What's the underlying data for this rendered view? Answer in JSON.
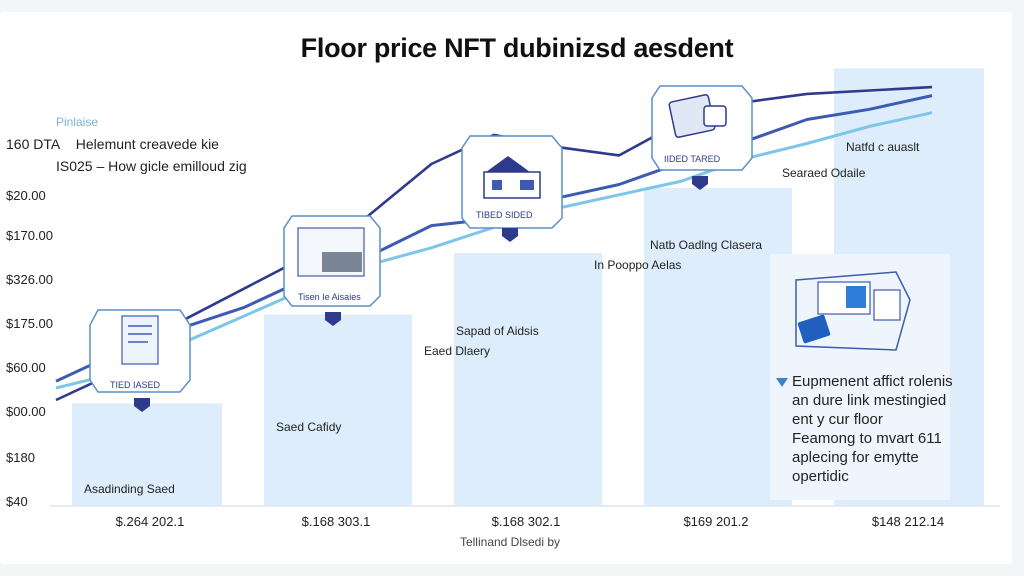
{
  "chart_data": {
    "type": "line",
    "title": "Floor price NFT dubinizsd aesdent",
    "xlabel": "Tellinand Dlsedi by",
    "ylabel": "",
    "y_ticks": [
      "$40",
      "$180",
      "$00.00",
      "$60.00",
      "$175.00",
      "$326.00",
      "$170.00",
      "$20.00",
      "160 DTA"
    ],
    "x_ticks": [
      "$.264 202.1",
      "$.168 303.1",
      "$.168 302.1",
      "$169 201.2",
      "$148 212.14"
    ],
    "legend": {
      "tag": "Pinlaise",
      "rows": [
        {
          "code": "160 DTA",
          "text": "Helemunt creavede kie"
        },
        {
          "code": "IS025",
          "text": "– How gicle emilloud zig"
        }
      ]
    },
    "series": [
      {
        "values": [
          62,
          79,
          108,
          127,
          146,
          170,
          200,
          217,
          210,
          205,
          225,
          236,
          241,
          243,
          245
        ]
      },
      {
        "values": [
          73,
          90,
          104,
          116,
          133,
          146,
          164,
          168,
          180,
          188,
          201,
          213,
          226,
          232,
          240
        ]
      },
      {
        "values": [
          69,
          78,
          95,
          111,
          127,
          141,
          151,
          163,
          174,
          182,
          190,
          203,
          212,
          222,
          230
        ]
      }
    ],
    "bars": [
      60,
      112,
      148,
      186,
      256
    ],
    "annotations": [
      "Asadinding Saed",
      "Saed Cafidy",
      "Sapad of Aidsis",
      "Eaed Dlaery",
      "In Pooppo Aelas",
      "Natb Oadlng Clasera",
      "Searaed Odaile",
      "Natfd c auaslt"
    ],
    "card_labels": [
      "TIED IASED",
      "Tisen Ie Aisaies",
      "TIBED SIDED",
      "IIDED TARED"
    ],
    "note": [
      "Eupmenent affict rolenis",
      "an dure link mestingied",
      "ent y cur floor",
      "Feamong to mvart 611",
      "aplecing for emytte",
      "opertidic"
    ],
    "colors": {
      "navy": "#2e3a8c",
      "blue": "#3d5bb3",
      "light": "#7dc6ea",
      "bar": "#deedfb",
      "frame": "#5b8fc9"
    },
    "icons": [
      "document-card-icon",
      "wallet-card-icon",
      "shop-card-icon",
      "cards-card-icon",
      "payment-screens-icon"
    ]
  }
}
